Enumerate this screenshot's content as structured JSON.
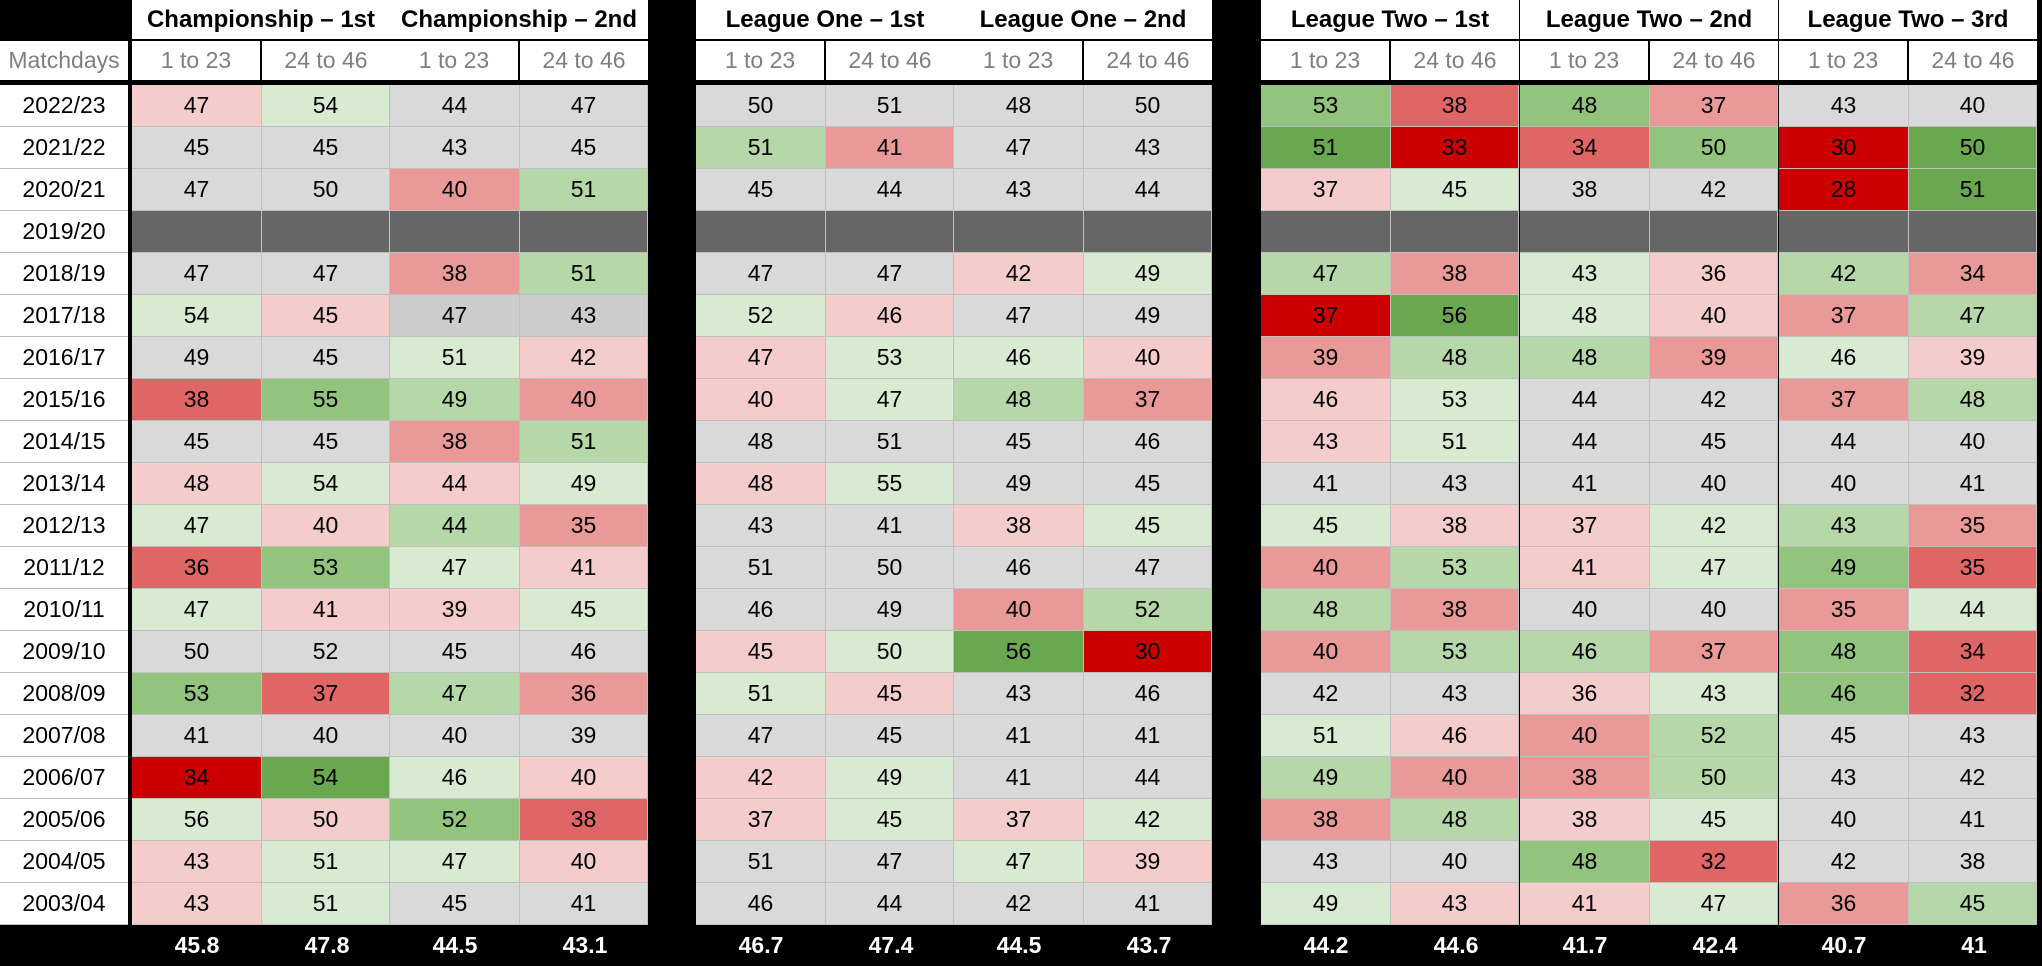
{
  "table": {
    "row_label_header": "Matchdays",
    "groups": [
      {
        "title": "Championship – 1st",
        "periods": [
          "1 to 23",
          "24 to 46"
        ]
      },
      {
        "title": "Championship – 2nd",
        "periods": [
          "1 to 23",
          "24 to 46"
        ]
      },
      {
        "title": "League One – 1st",
        "periods": [
          "1 to 23",
          "24 to 46"
        ]
      },
      {
        "title": "League One – 2nd",
        "periods": [
          "1 to 23",
          "24 to 46"
        ]
      },
      {
        "title": "League Two – 1st",
        "periods": [
          "1 to 23",
          "24 to 46"
        ]
      },
      {
        "title": "League Two – 2nd",
        "periods": [
          "1 to 23",
          "24 to 46"
        ]
      },
      {
        "title": "League Two – 3rd",
        "periods": [
          "1 to 23",
          "24 to 46"
        ]
      }
    ],
    "rows": [
      {
        "season": "2022/23",
        "values": [
          47,
          54,
          44,
          47,
          50,
          51,
          48,
          50,
          53,
          38,
          48,
          37,
          43,
          40
        ],
        "colors": [
          "#f4cccc",
          "#d9ead3",
          "#d9d9d9",
          "#d9d9d9",
          "#d9d9d9",
          "#d9d9d9",
          "#d9d9d9",
          "#d9d9d9",
          "#93c47d",
          "#e06666",
          "#93c47d",
          "#ea9999",
          "#d9d9d9",
          "#d9d9d9"
        ]
      },
      {
        "season": "2021/22",
        "values": [
          45,
          45,
          43,
          45,
          51,
          41,
          47,
          43,
          51,
          33,
          34,
          50,
          30,
          50
        ],
        "colors": [
          "#d9d9d9",
          "#d9d9d9",
          "#d9d9d9",
          "#d9d9d9",
          "#b6d7a8",
          "#ea9999",
          "#d9d9d9",
          "#d9d9d9",
          "#6aa84f",
          "#cc0000",
          "#e06666",
          "#93c47d",
          "#cc0000",
          "#6aa84f"
        ]
      },
      {
        "season": "2020/21",
        "values": [
          47,
          50,
          40,
          51,
          45,
          44,
          43,
          44,
          37,
          45,
          38,
          42,
          28,
          51
        ],
        "colors": [
          "#d9d9d9",
          "#d9d9d9",
          "#ea9999",
          "#b6d7a8",
          "#d9d9d9",
          "#d9d9d9",
          "#d9d9d9",
          "#d9d9d9",
          "#f4cccc",
          "#d9ead3",
          "#d9d9d9",
          "#d9d9d9",
          "#cc0000",
          "#6aa84f"
        ]
      },
      {
        "season": "2019/20",
        "values": [
          null,
          null,
          null,
          null,
          null,
          null,
          null,
          null,
          null,
          null,
          null,
          null,
          null,
          null
        ],
        "colors": [
          "#666666",
          "#666666",
          "#666666",
          "#666666",
          "#666666",
          "#666666",
          "#666666",
          "#666666",
          "#666666",
          "#666666",
          "#666666",
          "#666666",
          "#666666",
          "#666666"
        ]
      },
      {
        "season": "2018/19",
        "values": [
          47,
          47,
          38,
          51,
          47,
          47,
          42,
          49,
          47,
          38,
          43,
          36,
          42,
          34
        ],
        "colors": [
          "#d9d9d9",
          "#d9d9d9",
          "#ea9999",
          "#b6d7a8",
          "#d9d9d9",
          "#d9d9d9",
          "#f4cccc",
          "#d9ead3",
          "#b6d7a8",
          "#ea9999",
          "#d9ead3",
          "#f4cccc",
          "#b6d7a8",
          "#ea9999"
        ]
      },
      {
        "season": "2017/18",
        "values": [
          54,
          45,
          47,
          43,
          52,
          46,
          47,
          49,
          37,
          56,
          48,
          40,
          37,
          47
        ],
        "colors": [
          "#d9ead3",
          "#f4cccc",
          "#cccccc",
          "#cccccc",
          "#d9ead3",
          "#f4cccc",
          "#d9d9d9",
          "#d9d9d9",
          "#cc0000",
          "#6aa84f",
          "#d9ead3",
          "#f4cccc",
          "#ea9999",
          "#b6d7a8"
        ]
      },
      {
        "season": "2016/17",
        "values": [
          49,
          45,
          51,
          42,
          47,
          53,
          46,
          40,
          39,
          48,
          48,
          39,
          46,
          39
        ],
        "colors": [
          "#d9d9d9",
          "#d9d9d9",
          "#d9ead3",
          "#f4cccc",
          "#f4cccc",
          "#d9ead3",
          "#d9ead3",
          "#f4cccc",
          "#ea9999",
          "#b6d7a8",
          "#b6d7a8",
          "#ea9999",
          "#d9ead3",
          "#f4cccc"
        ]
      },
      {
        "season": "2015/16",
        "values": [
          38,
          55,
          49,
          40,
          40,
          47,
          48,
          37,
          46,
          53,
          44,
          42,
          37,
          48
        ],
        "colors": [
          "#e06666",
          "#93c47d",
          "#b6d7a8",
          "#ea9999",
          "#f4cccc",
          "#d9ead3",
          "#b6d7a8",
          "#ea9999",
          "#f4cccc",
          "#d9ead3",
          "#d9d9d9",
          "#d9d9d9",
          "#ea9999",
          "#b6d7a8"
        ]
      },
      {
        "season": "2014/15",
        "values": [
          45,
          45,
          38,
          51,
          48,
          51,
          45,
          46,
          43,
          51,
          44,
          45,
          44,
          40
        ],
        "colors": [
          "#d9d9d9",
          "#d9d9d9",
          "#ea9999",
          "#b6d7a8",
          "#d9d9d9",
          "#d9d9d9",
          "#d9d9d9",
          "#d9d9d9",
          "#f4cccc",
          "#d9ead3",
          "#d9d9d9",
          "#d9d9d9",
          "#d9d9d9",
          "#d9d9d9"
        ]
      },
      {
        "season": "2013/14",
        "values": [
          48,
          54,
          44,
          49,
          48,
          55,
          49,
          45,
          41,
          43,
          41,
          40,
          40,
          41
        ],
        "colors": [
          "#f4cccc",
          "#d9ead3",
          "#f4cccc",
          "#d9ead3",
          "#f4cccc",
          "#d9ead3",
          "#d9d9d9",
          "#d9d9d9",
          "#d9d9d9",
          "#d9d9d9",
          "#d9d9d9",
          "#d9d9d9",
          "#d9d9d9",
          "#d9d9d9"
        ]
      },
      {
        "season": "2012/13",
        "values": [
          47,
          40,
          44,
          35,
          43,
          41,
          38,
          45,
          45,
          38,
          37,
          42,
          43,
          35
        ],
        "colors": [
          "#d9ead3",
          "#f4cccc",
          "#b6d7a8",
          "#ea9999",
          "#d9d9d9",
          "#d9d9d9",
          "#f4cccc",
          "#d9ead3",
          "#d9ead3",
          "#f4cccc",
          "#f4cccc",
          "#d9ead3",
          "#b6d7a8",
          "#ea9999"
        ]
      },
      {
        "season": "2011/12",
        "values": [
          36,
          53,
          47,
          41,
          51,
          50,
          46,
          47,
          40,
          53,
          41,
          47,
          49,
          35
        ],
        "colors": [
          "#e06666",
          "#93c47d",
          "#d9ead3",
          "#f4cccc",
          "#d9d9d9",
          "#d9d9d9",
          "#d9d9d9",
          "#d9d9d9",
          "#ea9999",
          "#b6d7a8",
          "#f4cccc",
          "#d9ead3",
          "#93c47d",
          "#e06666"
        ]
      },
      {
        "season": "2010/11",
        "values": [
          47,
          41,
          39,
          45,
          46,
          49,
          40,
          52,
          48,
          38,
          40,
          40,
          35,
          44
        ],
        "colors": [
          "#d9ead3",
          "#f4cccc",
          "#f4cccc",
          "#d9ead3",
          "#d9d9d9",
          "#d9d9d9",
          "#ea9999",
          "#b6d7a8",
          "#b6d7a8",
          "#ea9999",
          "#d9d9d9",
          "#d9d9d9",
          "#ea9999",
          "#d9ead3"
        ]
      },
      {
        "season": "2009/10",
        "values": [
          50,
          52,
          45,
          46,
          45,
          50,
          56,
          30,
          40,
          53,
          46,
          37,
          48,
          34
        ],
        "colors": [
          "#d9d9d9",
          "#d9d9d9",
          "#d9d9d9",
          "#d9d9d9",
          "#f4cccc",
          "#d9ead3",
          "#6aa84f",
          "#cc0000",
          "#ea9999",
          "#b6d7a8",
          "#b6d7a8",
          "#ea9999",
          "#93c47d",
          "#e06666"
        ]
      },
      {
        "season": "2008/09",
        "values": [
          53,
          37,
          47,
          36,
          51,
          45,
          43,
          46,
          42,
          43,
          36,
          43,
          46,
          32
        ],
        "colors": [
          "#93c47d",
          "#e06666",
          "#b6d7a8",
          "#ea9999",
          "#d9ead3",
          "#f4cccc",
          "#d9d9d9",
          "#d9d9d9",
          "#d9d9d9",
          "#d9d9d9",
          "#f4cccc",
          "#d9ead3",
          "#93c47d",
          "#e06666"
        ]
      },
      {
        "season": "2007/08",
        "values": [
          41,
          40,
          40,
          39,
          47,
          45,
          41,
          41,
          51,
          46,
          40,
          52,
          45,
          43
        ],
        "colors": [
          "#d9d9d9",
          "#d9d9d9",
          "#d9d9d9",
          "#d9d9d9",
          "#d9d9d9",
          "#d9d9d9",
          "#d9d9d9",
          "#d9d9d9",
          "#d9ead3",
          "#f4cccc",
          "#ea9999",
          "#b6d7a8",
          "#d9d9d9",
          "#d9d9d9"
        ]
      },
      {
        "season": "2006/07",
        "values": [
          34,
          54,
          46,
          40,
          42,
          49,
          41,
          44,
          49,
          40,
          38,
          50,
          43,
          42
        ],
        "colors": [
          "#cc0000",
          "#6aa84f",
          "#d9ead3",
          "#f4cccc",
          "#f4cccc",
          "#d9ead3",
          "#d9d9d9",
          "#d9d9d9",
          "#b6d7a8",
          "#ea9999",
          "#ea9999",
          "#b6d7a8",
          "#d9d9d9",
          "#d9d9d9"
        ]
      },
      {
        "season": "2005/06",
        "values": [
          56,
          50,
          52,
          38,
          37,
          45,
          37,
          42,
          38,
          48,
          38,
          45,
          40,
          41
        ],
        "colors": [
          "#d9ead3",
          "#f4cccc",
          "#93c47d",
          "#e06666",
          "#f4cccc",
          "#d9ead3",
          "#f4cccc",
          "#d9ead3",
          "#ea9999",
          "#b6d7a8",
          "#f4cccc",
          "#d9ead3",
          "#d9d9d9",
          "#d9d9d9"
        ]
      },
      {
        "season": "2004/05",
        "values": [
          43,
          51,
          47,
          40,
          51,
          47,
          47,
          39,
          43,
          40,
          48,
          32,
          42,
          38
        ],
        "colors": [
          "#f4cccc",
          "#d9ead3",
          "#d9ead3",
          "#f4cccc",
          "#d9d9d9",
          "#d9d9d9",
          "#d9ead3",
          "#f4cccc",
          "#d9d9d9",
          "#d9d9d9",
          "#93c47d",
          "#e06666",
          "#d9d9d9",
          "#d9d9d9"
        ]
      },
      {
        "season": "2003/04",
        "values": [
          43,
          51,
          45,
          41,
          46,
          44,
          42,
          41,
          49,
          43,
          41,
          47,
          36,
          45
        ],
        "colors": [
          "#f4cccc",
          "#d9ead3",
          "#d9d9d9",
          "#d9d9d9",
          "#d9d9d9",
          "#d9d9d9",
          "#d9d9d9",
          "#d9d9d9",
          "#d9ead3",
          "#f4cccc",
          "#f4cccc",
          "#d9ead3",
          "#ea9999",
          "#b6d7a8"
        ]
      }
    ],
    "averages": [
      45.8,
      47.8,
      44.5,
      43.1,
      46.7,
      47.4,
      44.5,
      43.7,
      44.2,
      44.6,
      41.7,
      42.4,
      40.7,
      41
    ]
  }
}
